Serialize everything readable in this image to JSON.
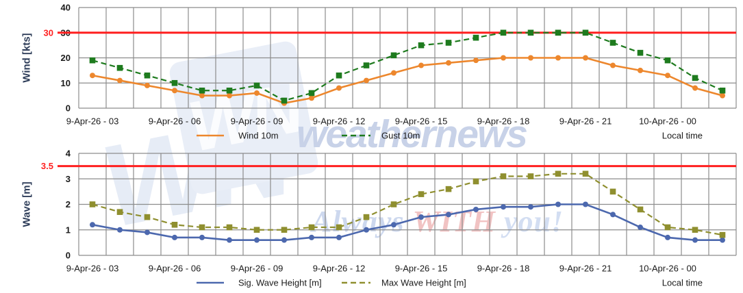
{
  "watermark": {
    "logo_text": "WN",
    "brand": "weathernews",
    "tagline": [
      "Always",
      "WITH",
      "you!"
    ]
  },
  "colors": {
    "wind": "#ED872D",
    "gust": "#1E7B1E",
    "sig_wave": "#4C68AE",
    "max_wave": "#8F8F2F",
    "threshold": "#FF1F1F",
    "grid": "#8C8C8C",
    "text": "#1A1A1A",
    "axis_title": "#2E3D59"
  },
  "chart_data": [
    {
      "type": "line",
      "panel": "wind",
      "ylabel": "Wind [kts]",
      "ylim": [
        0,
        40
      ],
      "y_ticks": [
        0,
        10,
        20,
        30,
        40
      ],
      "grid": true,
      "threshold": {
        "value": 30,
        "label": "30"
      },
      "x_start": "9-Apr-26 03:00",
      "x_end": "10-Apr-26 02:00",
      "x_step_hours": 1,
      "x_tick_labels": [
        "9-Apr-26 - 03",
        "9-Apr-26 - 06",
        "9-Apr-26 - 09",
        "9-Apr-26 - 12",
        "9-Apr-26 - 15",
        "9-Apr-26 - 18",
        "9-Apr-26 - 21",
        "10-Apr-26 - 00"
      ],
      "x_tick_positions": [
        0,
        3,
        6,
        9,
        12,
        15,
        18,
        21
      ],
      "corner_label": "Local time",
      "legend_position": "bottom",
      "series": [
        {
          "name": "Wind 10m",
          "style": "solid",
          "marker": "circle",
          "color_key": "wind",
          "values": [
            13,
            11,
            9,
            7,
            5,
            5,
            6,
            2,
            4,
            8,
            11,
            14,
            17,
            18,
            19,
            20,
            20,
            20,
            20,
            17,
            15,
            13,
            8,
            5
          ]
        },
        {
          "name": "Gust 10m",
          "style": "dashed",
          "marker": "square",
          "color_key": "gust",
          "values": [
            19,
            16,
            13,
            10,
            7,
            7,
            9,
            3,
            6,
            13,
            17,
            21,
            25,
            26,
            28,
            30,
            30,
            30,
            30,
            26,
            22,
            19,
            12,
            7
          ]
        }
      ]
    },
    {
      "type": "line",
      "panel": "wave",
      "ylabel": "Wave [m]",
      "ylim": [
        0,
        4
      ],
      "y_ticks": [
        0,
        1,
        2,
        3,
        4
      ],
      "grid": true,
      "threshold": {
        "value": 3.5,
        "label": "3.5"
      },
      "x_start": "9-Apr-26 03:00",
      "x_end": "10-Apr-26 02:00",
      "x_step_hours": 1,
      "x_tick_labels": [
        "9-Apr-26 - 03",
        "9-Apr-26 - 06",
        "9-Apr-26 - 09",
        "9-Apr-26 - 12",
        "9-Apr-26 - 15",
        "9-Apr-26 - 18",
        "9-Apr-26 - 21",
        "10-Apr-26 - 00"
      ],
      "x_tick_positions": [
        0,
        3,
        6,
        9,
        12,
        15,
        18,
        21
      ],
      "corner_label": "Local time",
      "legend_position": "bottom",
      "series": [
        {
          "name": "Sig. Wave Height [m]",
          "style": "solid",
          "marker": "circle",
          "color_key": "sig_wave",
          "values": [
            1.2,
            1.0,
            0.9,
            0.7,
            0.7,
            0.6,
            0.6,
            0.6,
            0.7,
            0.7,
            1.0,
            1.2,
            1.5,
            1.6,
            1.8,
            1.9,
            1.9,
            2.0,
            2.0,
            1.6,
            1.1,
            0.7,
            0.6,
            0.6
          ]
        },
        {
          "name": "Max Wave Height [m]",
          "style": "dashed",
          "marker": "square",
          "color_key": "max_wave",
          "values": [
            2.0,
            1.7,
            1.5,
            1.2,
            1.1,
            1.1,
            1.0,
            1.0,
            1.1,
            1.1,
            1.5,
            2.0,
            2.4,
            2.6,
            2.9,
            3.1,
            3.1,
            3.2,
            3.2,
            2.5,
            1.8,
            1.1,
            1.0,
            0.8
          ]
        }
      ]
    }
  ]
}
